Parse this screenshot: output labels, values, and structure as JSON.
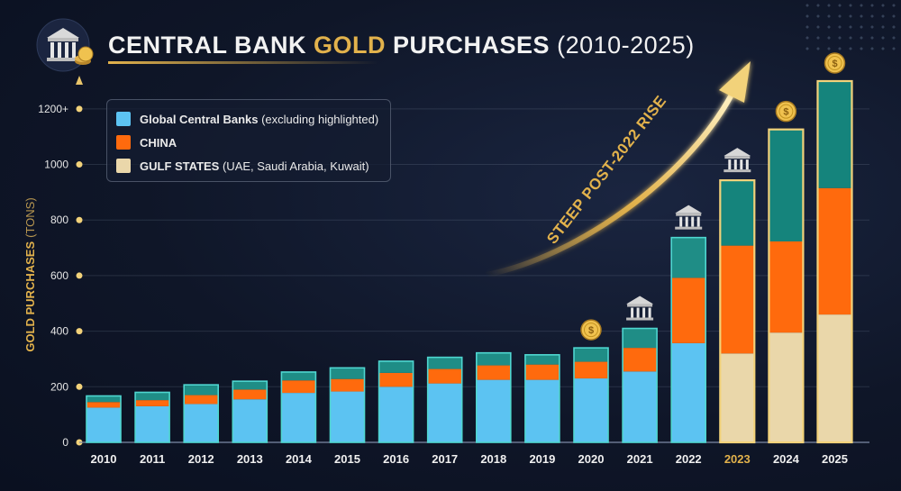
{
  "header": {
    "title_part1": "CENTRAL  BANK",
    "title_gold": "GOLD",
    "title_part2": "PURCHASES",
    "title_years": "(2010-2025)"
  },
  "colors": {
    "global": "#5cc3f2",
    "china": "#ff6a0d",
    "gulf": "#ead7aa",
    "gulf_highlight": "#15847c",
    "gold": "#e2b24c",
    "axis": "#c9a04a"
  },
  "icons": {
    "header": "bank-with-coins-icon",
    "bar_decor": [
      "coin-icon",
      "bank-icon"
    ]
  },
  "legend": [
    {
      "label_bold": "Global Central Banks",
      "label_rest": " (excluding highlighted)",
      "color": "#5cc3f2"
    },
    {
      "label_bold": "CHINA",
      "label_rest": "",
      "color": "#ff6a0d"
    },
    {
      "label_bold": "GULF STATES",
      "label_rest": " (UAE, Saudi Arabia, Kuwait)",
      "color": "#ead7aa"
    }
  ],
  "annotation": "STEEP POST-2022 RISE",
  "chart_data": {
    "type": "bar",
    "stacked": true,
    "ylabel": "GOLD PURCHASES",
    "ylabel_unit": "(TONS)",
    "ylim": [
      0,
      1300
    ],
    "yticks": [
      0,
      200,
      400,
      600,
      800,
      1000,
      1200
    ],
    "ytick_labels": [
      "0",
      "200",
      "400",
      "600",
      "800",
      "1000",
      "1200+"
    ],
    "categories": [
      "2010",
      "2011",
      "2012",
      "2013",
      "2014",
      "2015",
      "2016",
      "2017",
      "2018",
      "2019",
      "2020",
      "2021",
      "2022",
      "2023",
      "2024",
      "2025"
    ],
    "highlighted_categories": [
      "2023",
      "2024",
      "2025"
    ],
    "series": [
      {
        "name": "Global Central Banks",
        "values": [
          125,
          130,
          138,
          155,
          178,
          183,
          200,
          212,
          225,
          225,
          230,
          255,
          357,
          320,
          395,
          460
        ]
      },
      {
        "name": "CHINA",
        "values": [
          20,
          22,
          32,
          35,
          45,
          45,
          50,
          52,
          52,
          55,
          60,
          85,
          235,
          388,
          328,
          455
        ]
      },
      {
        "name": "GULF STATES",
        "values": [
          22,
          28,
          37,
          30,
          30,
          40,
          42,
          42,
          45,
          35,
          50,
          70,
          145,
          235,
          403,
          385
        ]
      }
    ],
    "grid": true,
    "legend_position": "top-left"
  }
}
